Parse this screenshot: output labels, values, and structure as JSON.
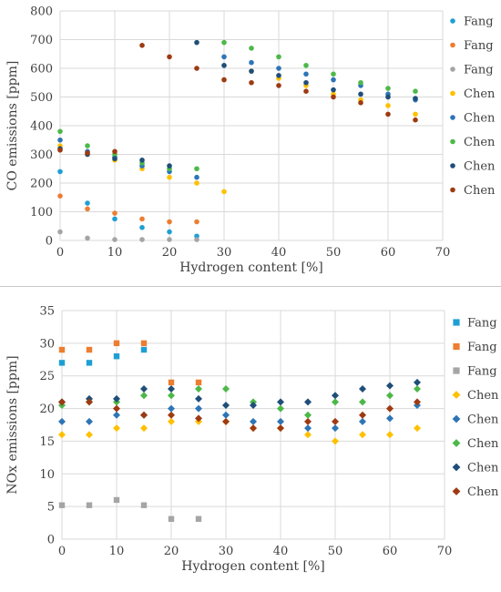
{
  "chart_data": [
    {
      "type": "scatter",
      "xlabel": "Hydrogen content [%]",
      "ylabel": "CO emissions [ppm]",
      "xlim": [
        0,
        70
      ],
      "ylim": [
        0,
        800
      ],
      "xticks": [
        0,
        10,
        20,
        30,
        40,
        50,
        60,
        70
      ],
      "yticks": [
        0,
        100,
        200,
        300,
        400,
        500,
        600,
        700,
        800
      ],
      "grid": true,
      "legend_position": "right",
      "marker": "circle",
      "series": [
        {
          "name": "Fang",
          "color": "#1e9fd4",
          "x": [
            0,
            5,
            10,
            15,
            20,
            25
          ],
          "y": [
            240,
            130,
            75,
            45,
            30,
            15
          ]
        },
        {
          "name": "Fang",
          "color": "#ed7d31",
          "x": [
            0,
            5,
            10,
            15,
            20,
            25
          ],
          "y": [
            155,
            110,
            95,
            75,
            65,
            65
          ]
        },
        {
          "name": "Fang",
          "color": "#a5a5a5",
          "x": [
            0,
            5,
            10,
            15,
            20,
            25
          ],
          "y": [
            30,
            8,
            3,
            3,
            3,
            3
          ]
        },
        {
          "name": "Chen",
          "color": "#ffc000",
          "x": [
            0,
            5,
            10,
            15,
            20,
            25,
            30,
            35,
            40,
            45,
            50,
            55,
            60,
            65
          ],
          "y": [
            330,
            300,
            280,
            250,
            220,
            200,
            170,
            590,
            565,
            540,
            510,
            490,
            470,
            440
          ]
        },
        {
          "name": "Chen",
          "color": "#2e75b6",
          "x": [
            0,
            5,
            10,
            15,
            20,
            25,
            30,
            35,
            40,
            45,
            50,
            55,
            60,
            65
          ],
          "y": [
            350,
            310,
            290,
            260,
            240,
            220,
            640,
            620,
            600,
            580,
            560,
            540,
            510,
            490
          ]
        },
        {
          "name": "Chen",
          "color": "#4cb848",
          "x": [
            0,
            5,
            10,
            15,
            20,
            25,
            30,
            35,
            40,
            45,
            50,
            55,
            60,
            65
          ],
          "y": [
            380,
            330,
            300,
            270,
            250,
            250,
            690,
            670,
            640,
            610,
            580,
            550,
            530,
            520
          ]
        },
        {
          "name": "Chen",
          "color": "#1f4e79",
          "x": [
            0,
            5,
            10,
            15,
            20,
            25,
            30,
            35,
            40,
            45,
            50,
            55,
            60,
            65
          ],
          "y": [
            320,
            300,
            285,
            280,
            260,
            690,
            610,
            590,
            575,
            550,
            525,
            510,
            500,
            495
          ]
        },
        {
          "name": "Chen",
          "color": "#9e3a12",
          "x": [
            0,
            5,
            10,
            15,
            20,
            25,
            30,
            35,
            40,
            45,
            50,
            55,
            60,
            65
          ],
          "y": [
            315,
            305,
            310,
            680,
            640,
            600,
            560,
            550,
            540,
            520,
            500,
            480,
            440,
            420
          ]
        }
      ]
    },
    {
      "type": "scatter",
      "xlabel": "Hydrogen content [%]",
      "ylabel": "NOx emissions [ppm]",
      "xlim": [
        0,
        70
      ],
      "ylim": [
        0,
        35
      ],
      "xticks": [
        0,
        10,
        20,
        30,
        40,
        50,
        60,
        70
      ],
      "yticks": [
        0,
        5,
        10,
        15,
        20,
        25,
        30,
        35
      ],
      "grid": true,
      "legend_position": "right",
      "series": [
        {
          "name": "Fang",
          "color": "#1e9fd4",
          "marker": "square",
          "x": [
            0,
            5,
            10,
            15
          ],
          "y": [
            27,
            27,
            28,
            29
          ]
        },
        {
          "name": "Fang",
          "color": "#ed7d31",
          "marker": "square",
          "x": [
            0,
            5,
            10,
            15,
            20,
            25
          ],
          "y": [
            29,
            29,
            30,
            30,
            24,
            24
          ]
        },
        {
          "name": "Fang",
          "color": "#a5a5a5",
          "marker": "square",
          "x": [
            0,
            5,
            10,
            15,
            20,
            25
          ],
          "y": [
            5.2,
            5.2,
            6,
            5.2,
            3.1,
            3.1
          ]
        },
        {
          "name": "Chen",
          "color": "#ffc000",
          "marker": "diamond",
          "x": [
            0,
            5,
            10,
            15,
            20,
            25,
            30,
            35,
            40,
            45,
            50,
            55,
            60,
            65
          ],
          "y": [
            16,
            16,
            17,
            17,
            18,
            18,
            18,
            17,
            17,
            16,
            15,
            16,
            16,
            17
          ]
        },
        {
          "name": "Chen",
          "color": "#2e75b6",
          "marker": "diamond",
          "x": [
            0,
            5,
            10,
            15,
            20,
            25,
            30,
            35,
            40,
            45,
            50,
            55,
            60,
            65
          ],
          "y": [
            18,
            18,
            19,
            19,
            20,
            20,
            19,
            18,
            18,
            17,
            17,
            18,
            18.5,
            20.5
          ]
        },
        {
          "name": "Chen",
          "color": "#4cb848",
          "marker": "diamond",
          "x": [
            0,
            5,
            10,
            15,
            20,
            25,
            30,
            35,
            40,
            45,
            50,
            55,
            60,
            65
          ],
          "y": [
            20.5,
            21,
            21,
            22,
            22,
            23,
            23,
            21,
            20,
            19,
            21,
            21,
            22,
            23
          ]
        },
        {
          "name": "Chen",
          "color": "#1f4e79",
          "marker": "diamond",
          "x": [
            0,
            5,
            10,
            15,
            20,
            25,
            30,
            35,
            40,
            45,
            50,
            55,
            60,
            65
          ],
          "y": [
            21,
            21.5,
            21.5,
            23,
            23,
            21.5,
            20.5,
            20.5,
            21,
            21,
            22,
            23,
            23.5,
            24
          ]
        },
        {
          "name": "Chen",
          "color": "#9e3a12",
          "marker": "diamond",
          "x": [
            0,
            5,
            10,
            15,
            20,
            25,
            30,
            35,
            40,
            45,
            50,
            55,
            60,
            65
          ],
          "y": [
            21,
            21,
            20,
            19,
            19,
            18.5,
            18,
            17,
            17,
            18,
            18,
            19,
            20,
            21
          ]
        }
      ]
    }
  ]
}
